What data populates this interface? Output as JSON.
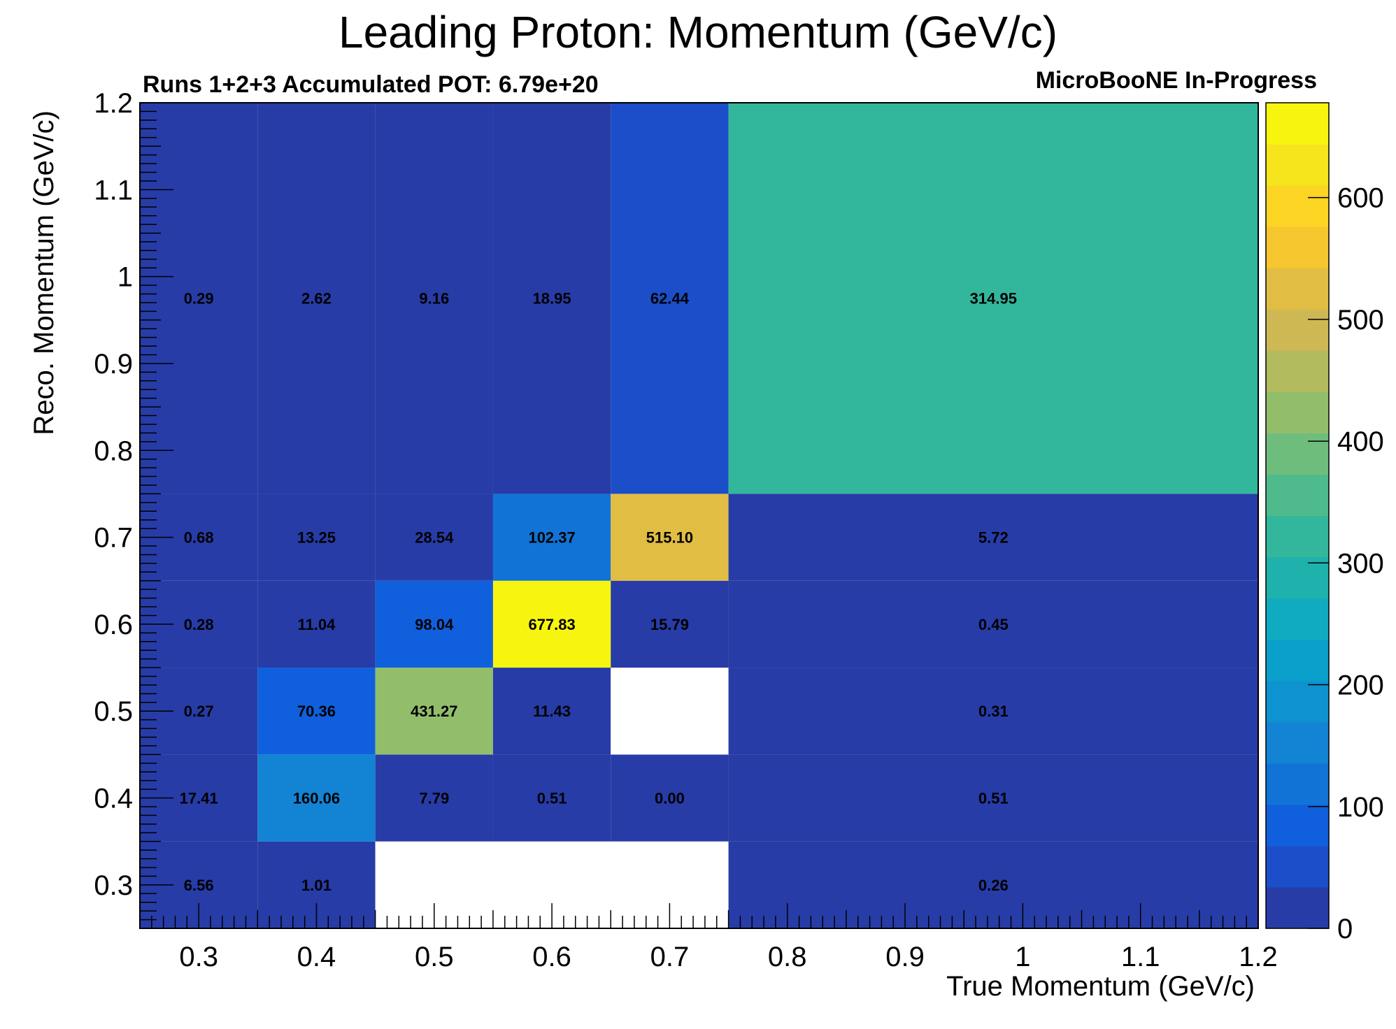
{
  "chart_data": {
    "type": "heatmap",
    "title": "Leading Proton: Momentum (GeV/c)",
    "subtitle_left": "Runs 1+2+3 Accumulated POT: 6.79e+20",
    "subtitle_right": "MicroBooNE In-Progress",
    "xlabel": "True Momentum (GeV/c)",
    "ylabel": "Reco. Momentum (GeV/c)",
    "xlim": [
      0.25,
      1.2
    ],
    "ylim": [
      0.25,
      1.2
    ],
    "x_ticks": [
      "0.3",
      "0.4",
      "0.5",
      "0.6",
      "0.7",
      "0.8",
      "0.9",
      "1",
      "1.1",
      "1.2"
    ],
    "y_ticks": [
      "0.3",
      "0.4",
      "0.5",
      "0.6",
      "0.7",
      "0.8",
      "0.9",
      "1",
      "1.1",
      "1.2"
    ],
    "x_bin_edges": [
      0.25,
      0.35,
      0.45,
      0.55,
      0.65,
      0.75,
      1.2
    ],
    "y_bin_edges": [
      0.25,
      0.35,
      0.45,
      0.55,
      0.65,
      0.75,
      1.2
    ],
    "values": [
      [
        6.56,
        1.01,
        null,
        null,
        null,
        0.26
      ],
      [
        17.41,
        160.06,
        7.79,
        0.51,
        0.0,
        0.51
      ],
      [
        0.27,
        70.36,
        431.27,
        11.43,
        null,
        0.31
      ],
      [
        0.28,
        11.04,
        98.04,
        677.83,
        15.79,
        0.45
      ],
      [
        0.68,
        13.25,
        28.54,
        102.37,
        515.1,
        5.72
      ],
      [
        0.29,
        2.62,
        9.16,
        18.95,
        62.44,
        314.95
      ]
    ],
    "value_labels": [
      [
        "6.56",
        "1.01",
        "",
        "",
        "",
        "0.26"
      ],
      [
        "17.41",
        "160.06",
        "7.79",
        "0.51",
        "0.00",
        "0.51"
      ],
      [
        "0.27",
        "70.36",
        "431.27",
        "11.43",
        "",
        "0.31"
      ],
      [
        "0.28",
        "11.04",
        "98.04",
        "677.83",
        "15.79",
        "0.45"
      ],
      [
        "0.68",
        "13.25",
        "28.54",
        "102.37",
        "515.10",
        "5.72"
      ],
      [
        "0.29",
        "2.62",
        "9.16",
        "18.95",
        "62.44",
        "314.95"
      ]
    ],
    "zlim": [
      0,
      677.83
    ],
    "colorbar_ticks": [
      "0",
      "100",
      "200",
      "300",
      "400",
      "500",
      "600"
    ],
    "colorbar_tick_values": [
      0,
      100,
      200,
      300,
      400,
      500,
      600
    ],
    "colormap": [
      "#273ca6",
      "#1b4ec8",
      "#1060dd",
      "#1173d6",
      "#1383d4",
      "#0f93d0",
      "#0aa0cb",
      "#10abc0",
      "#1fb2ad",
      "#32b79c",
      "#4fbb8c",
      "#6fbd7d",
      "#92be6c",
      "#b2bc5e",
      "#cdb853",
      "#e2bd44",
      "#f5c62d",
      "#fbd424",
      "#f6e41c",
      "#f7f50f"
    ],
    "grid": false
  }
}
